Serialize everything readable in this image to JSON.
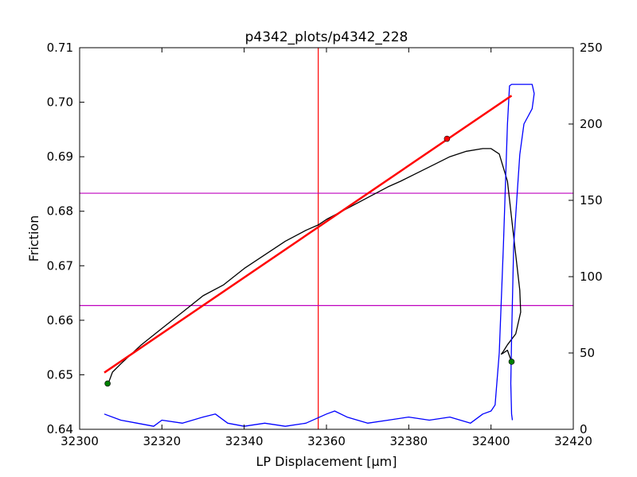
{
  "chart_data": {
    "type": "line",
    "title": "p4342_plots/p4342_228",
    "xlabel": "LP Displacement [μm]",
    "ylabel": "Friction",
    "xlim": [
      32300,
      32420
    ],
    "ylim": [
      0.64,
      0.71
    ],
    "y2lim": [
      0,
      250
    ],
    "grid": false,
    "x_ticks": [
      "32300",
      "32320",
      "32340",
      "32360",
      "32380",
      "32400",
      "32420"
    ],
    "y_ticks": [
      "0.64",
      "0.65",
      "0.66",
      "0.67",
      "0.68",
      "0.69",
      "0.70",
      "0.71"
    ],
    "y2_ticks": [
      "0",
      "50",
      "100",
      "150",
      "200",
      "250"
    ],
    "vertical_line": {
      "x": 32358,
      "color": "#ff0000"
    },
    "horizontal_lines": [
      {
        "y": 0.6833,
        "color": "#bf00bf"
      },
      {
        "y": 0.6627,
        "color": "#bf00bf"
      }
    ],
    "series": [
      {
        "axis": "left",
        "color": "#000000",
        "x": [
          32307,
          32308,
          32310,
          32315,
          32320,
          32325,
          32330,
          32335,
          32340,
          32345,
          32350,
          32355,
          32358,
          32360,
          32365,
          32370,
          32375,
          32378,
          32382,
          32386,
          32390,
          32394,
          32398,
          32400,
          32402,
          32404,
          32406,
          32407,
          32407.2,
          32406,
          32404,
          32403,
          32402.5,
          32403,
          32404,
          32405
        ],
        "y": [
          0.6485,
          0.6505,
          0.652,
          0.6555,
          0.6585,
          0.6615,
          0.6645,
          0.6665,
          0.6695,
          0.672,
          0.6745,
          0.6765,
          0.6775,
          0.6785,
          0.6805,
          0.6825,
          0.6845,
          0.6855,
          0.687,
          0.6885,
          0.69,
          0.691,
          0.6915,
          0.6915,
          0.6905,
          0.6855,
          0.672,
          0.6655,
          0.6615,
          0.6575,
          0.6555,
          0.6543,
          0.6538,
          0.654,
          0.6545,
          0.6524
        ]
      },
      {
        "axis": "right",
        "color": "#0000ff",
        "x": [
          32306,
          32310,
          32314,
          32318,
          32320,
          32325,
          32330,
          32333,
          32336,
          32340,
          32345,
          32350,
          32355,
          32360,
          32362,
          32365,
          32370,
          32375,
          32380,
          32385,
          32390,
          32395,
          32398,
          32400,
          32401,
          32402,
          32403,
          32404,
          32404.5,
          32405,
          32410,
          32410.5,
          32410,
          32408,
          32407,
          32405.5,
          32405,
          32404.8,
          32405,
          32405.2
        ],
        "y": [
          10,
          6,
          4,
          2,
          6,
          4,
          8,
          10,
          4,
          2,
          4,
          2,
          4,
          10,
          12,
          8,
          4,
          6,
          8,
          6,
          8,
          4,
          10,
          12,
          16,
          50,
          120,
          200,
          225,
          226,
          226,
          220,
          210,
          200,
          180,
          120,
          60,
          30,
          10,
          6
        ]
      },
      {
        "axis": "left",
        "color": "#ff0000",
        "x": [
          32306,
          32405
        ],
        "y": [
          0.6504,
          0.7012
        ]
      }
    ],
    "markers": [
      {
        "x": 32306.8,
        "y": 0.6484,
        "color": "#007f00"
      },
      {
        "x": 32405,
        "y": 0.6524,
        "color": "#007f00"
      },
      {
        "x": 32389.3,
        "y": 0.6933,
        "color": "#ff0000"
      }
    ]
  }
}
